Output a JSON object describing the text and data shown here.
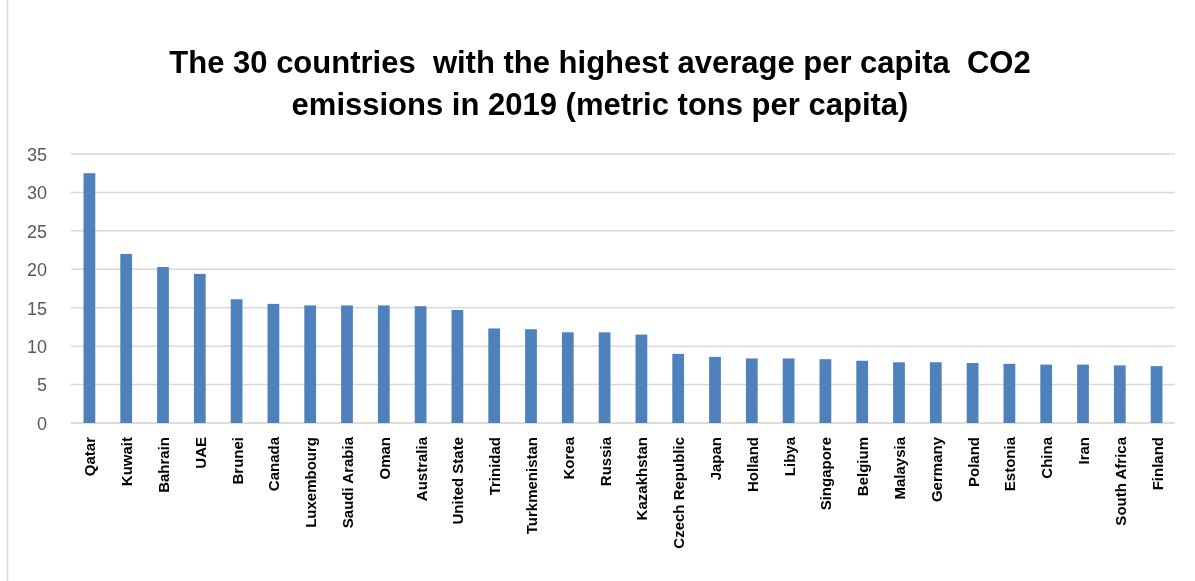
{
  "chart_data": {
    "type": "bar",
    "title": "The 30 countries  with the highest average per capita  CO2 emissions in 2019 (metric tons per capita)",
    "categories": [
      "Qatar",
      "Kuwait",
      "Bahrain",
      "UAE",
      "Brunei",
      "Canada",
      "Luxembourg",
      "Saudi Arabia",
      "Oman",
      "Australia",
      "United State",
      "Trinidad",
      "Turkmenistan",
      "Korea",
      "Russia",
      "Kazakhstan",
      "Czech Republic",
      "Japan",
      "Holland",
      "Libya",
      "Singapore",
      "Belgium",
      "Malaysia",
      "Germany",
      "Poland",
      "Estonia",
      "China",
      "Iran",
      "South Africa",
      "Finland"
    ],
    "values": [
      32.5,
      22.0,
      20.3,
      19.4,
      16.1,
      15.5,
      15.3,
      15.3,
      15.3,
      15.2,
      14.7,
      12.3,
      12.2,
      11.8,
      11.8,
      11.5,
      9.0,
      8.6,
      8.4,
      8.4,
      8.3,
      8.1,
      7.9,
      7.9,
      7.8,
      7.7,
      7.6,
      7.6,
      7.5,
      7.4
    ],
    "color": "#4f81bd",
    "ylim": [
      0,
      35
    ],
    "yticks": [
      0,
      5,
      10,
      15,
      20,
      25,
      30,
      35
    ],
    "grid": "y"
  }
}
